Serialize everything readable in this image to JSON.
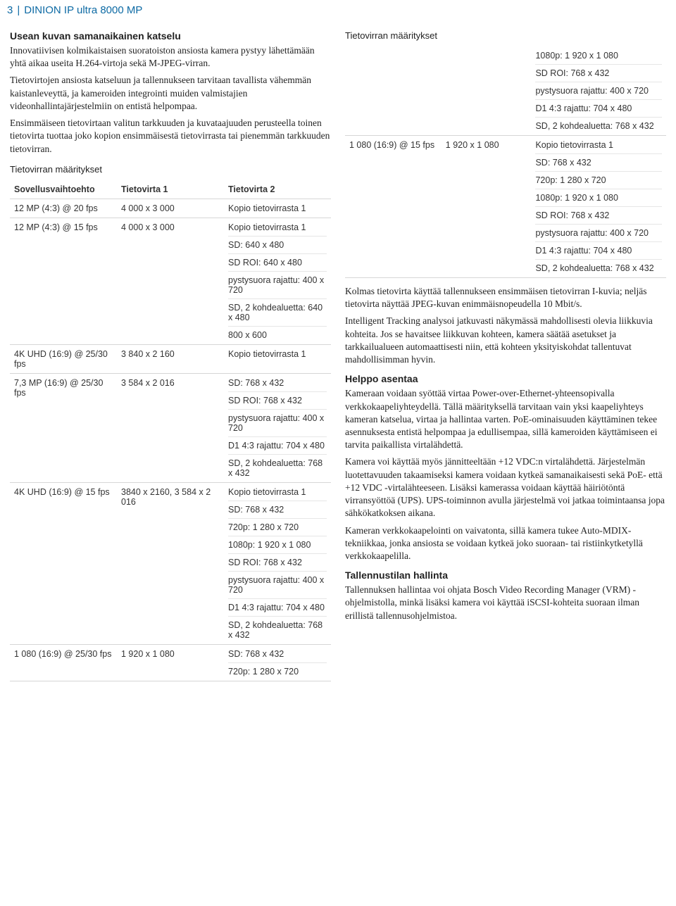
{
  "header": {
    "pagenum": "3",
    "divider": "|",
    "title": "DINION IP ultra 8000 MP"
  },
  "left": {
    "h1": "Usean kuvan samanaikainen katselu",
    "p1": "Innovatiivisen kolmikaistaisen suoratoiston ansiosta kamera pystyy lähettämään yhtä aikaa useita H.264-virtoja sekä M-JPEG-virran.",
    "p2": "Tietovirtojen ansiosta katseluun ja tallennukseen tarvitaan tavallista vähemmän kaistanleveyttä, ja kameroiden integrointi muiden valmistajien videonhallintajärjestelmiin on entistä helpompaa.",
    "p3": "Ensimmäiseen tietovirtaan valitun tarkkuuden ja kuvataajuuden perusteella toinen tietovirta tuottaa joko kopion ensimmäisestä tietovirrasta tai pienemmän tarkkuuden tietovirran.",
    "table_title": "Tietovirran määritykset",
    "th1": "Sovellusvaihtoehto",
    "th2": "Tietovirta 1",
    "th3": "Tietovirta 2",
    "rows": [
      {
        "c1": "12 MP (4:3) @ 20 fps",
        "c2": "4 000 x 3 000",
        "c3": [
          "Kopio tietovirrasta 1"
        ]
      },
      {
        "c1": "12 MP (4:3) @ 15 fps",
        "c2": "4 000 x 3 000",
        "c3": [
          "Kopio tietovirrasta 1",
          "SD: 640 x 480",
          "SD ROI: 640 x 480",
          "pystysuora rajattu: 400 x 720",
          "SD, 2 kohdealuetta: 640 x 480",
          "800 x 600"
        ]
      },
      {
        "c1": "4K UHD (16:9) @ 25/30 fps",
        "c2": "3 840 x 2 160",
        "c3": [
          "Kopio tietovirrasta 1"
        ]
      },
      {
        "c1": "7,3 MP (16:9) @ 25/30 fps",
        "c2": "3 584 x 2 016",
        "c3": [
          "SD: 768 x 432",
          "SD ROI: 768 x 432",
          "pystysuora rajattu: 400 x 720",
          "D1 4:3 rajattu: 704 x 480",
          "SD, 2 kohdealuetta: 768 x 432"
        ]
      },
      {
        "c1": "4K UHD (16:9) @ 15 fps",
        "c2": "3840 x 2160, 3 584 x 2 016",
        "c3": [
          "Kopio tietovirrasta 1",
          "SD: 768 x 432",
          "720p: 1 280 x 720",
          "1080p: 1 920 x 1 080",
          "SD ROI: 768 x 432",
          "pystysuora rajattu: 400 x 720",
          "D1 4:3 rajattu: 704 x 480",
          "SD, 2 kohdealuetta: 768 x 432"
        ]
      },
      {
        "c1": "1 080 (16:9) @ 25/30 fps",
        "c2": "1 920 x 1 080",
        "c3": [
          "SD: 768 x 432",
          "720p: 1 280 x 720"
        ]
      }
    ]
  },
  "right": {
    "table_title": "Tietovirran määritykset",
    "row1": {
      "c1": "",
      "c2": "",
      "c3": [
        "1080p: 1 920 x 1 080",
        "SD ROI: 768 x 432",
        "pystysuora rajattu: 400 x 720",
        "D1 4:3 rajattu: 704 x 480",
        "SD, 2 kohdealuetta: 768 x 432"
      ]
    },
    "row2": {
      "c1": "1 080 (16:9) @ 15 fps",
      "c2": "1 920 x 1 080",
      "c3": [
        "Kopio tietovirrasta 1",
        "SD: 768 x 432",
        "720p: 1 280 x 720",
        "1080p: 1 920 x 1 080",
        "SD ROI: 768 x 432",
        "pystysuora rajattu: 400 x 720",
        "D1 4:3 rajattu: 704 x 480",
        "SD, 2 kohdealuetta: 768 x 432"
      ]
    },
    "p1": "Kolmas tietovirta käyttää tallennukseen ensimmäisen tietovirran I-kuvia; neljäs tietovirta näyttää JPEG-kuvan enimmäisnopeudella 10 Mbit/s.",
    "p2": "Intelligent Tracking analysoi jatkuvasti näkymässä mahdollisesti olevia liikkuvia kohteita. Jos se havaitsee liikkuvan kohteen, kamera säätää asetukset ja tarkkailualueen automaattisesti niin, että kohteen yksityiskohdat tallentuvat mahdollisimman hyvin.",
    "h_helppo": "Helppo asentaa",
    "p3": "Kameraan voidaan syöttää virtaa Power-over-Ethernet-yhteensopivalla verkkokaapeliyhteydellä. Tällä määrityksellä tarvitaan vain yksi kaapeliyhteys kameran katselua, virtaa ja hallintaa varten. PoE-ominaisuuden käyttäminen tekee asennuksesta entistä helpompaa ja edullisempaa, sillä kameroiden käyttämiseen ei tarvita paikallista virtalähdettä.",
    "p4": "Kamera voi käyttää myös jännitteeltään +12 VDC:n virtalähdettä. Järjestelmän luotettavuuden takaamiseksi kamera voidaan kytkeä samanaikaisesti sekä PoE- että +12 VDC -virtalähteeseen. Lisäksi kamerassa voidaan käyttää häiriötöntä virransyöttöä (UPS). UPS-toiminnon avulla järjestelmä voi jatkaa toimintaansa jopa sähkökatkoksen aikana.",
    "p5": "Kameran verkkokaapelointi on vaivatonta, sillä kamera tukee Auto-MDIX-tekniikkaa, jonka ansiosta se voidaan kytkeä joko suoraan- tai ristiinkytketyllä verkkokaapelilla.",
    "h_tall": "Tallennustilan hallinta",
    "p6": "Tallennuksen hallintaa voi ohjata Bosch Video Recording Manager (VRM) -ohjelmistolla, minkä lisäksi kamera voi käyttää iSCSI-kohteita suoraan ilman erillistä tallennusohjelmistoa."
  }
}
